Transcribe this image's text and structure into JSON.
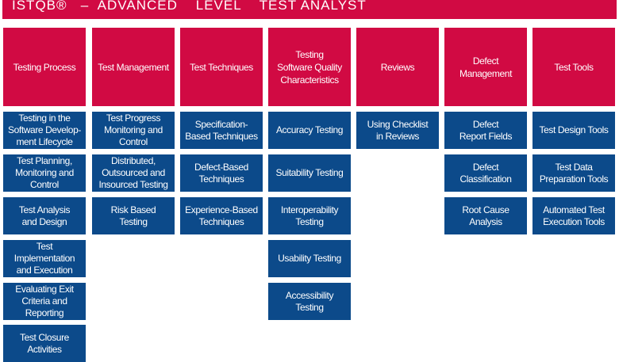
{
  "title": "ISTQB®   –  ADVANCED    LEVEL    TEST ANALYST",
  "colors": {
    "category": "#d10a43",
    "item": "#0c4a8a",
    "text": "#ffffff"
  },
  "columns": [
    {
      "label": "Testing Process",
      "items": [
        "Testing in the\nSoftware Develop-\nment Lifecycle",
        "Test Planning,\nMonitoring and\nControl",
        "Test Analysis\nand Design",
        "Test\nImplementation\nand Execution",
        "Evaluating Exit\nCriteria and\nReporting",
        "Test Closure\nActivities"
      ]
    },
    {
      "label": "Test Management",
      "items": [
        "Test Progress\nMonitoring and\nControl",
        "Distributed,\nOutsourced and\nInsourced Testing",
        "Risk Based\nTesting"
      ]
    },
    {
      "label": "Test Techniques",
      "items": [
        "Specification-\nBased Techniques",
        "Defect-Based\nTechniques",
        "Experience-Based\nTechniques"
      ]
    },
    {
      "label": "Testing\nSoftware Quality\nCharacteristics",
      "items": [
        "Accuracy Testing",
        "Suitability Testing",
        "Interoperability\nTesting",
        "Usability Testing",
        "Accessibility\nTesting"
      ]
    },
    {
      "label": "Reviews",
      "items": [
        "Using Checklist\nin Reviews"
      ]
    },
    {
      "label": "Defect\nManagement",
      "items": [
        "Defect\nReport Fields",
        "Defect\nClassification",
        "Root Cause\nAnalysis"
      ]
    },
    {
      "label": "Test Tools",
      "items": [
        "Test Design Tools",
        "Test Data\nPreparation Tools",
        "Automated Test\nExecution Tools"
      ]
    }
  ]
}
